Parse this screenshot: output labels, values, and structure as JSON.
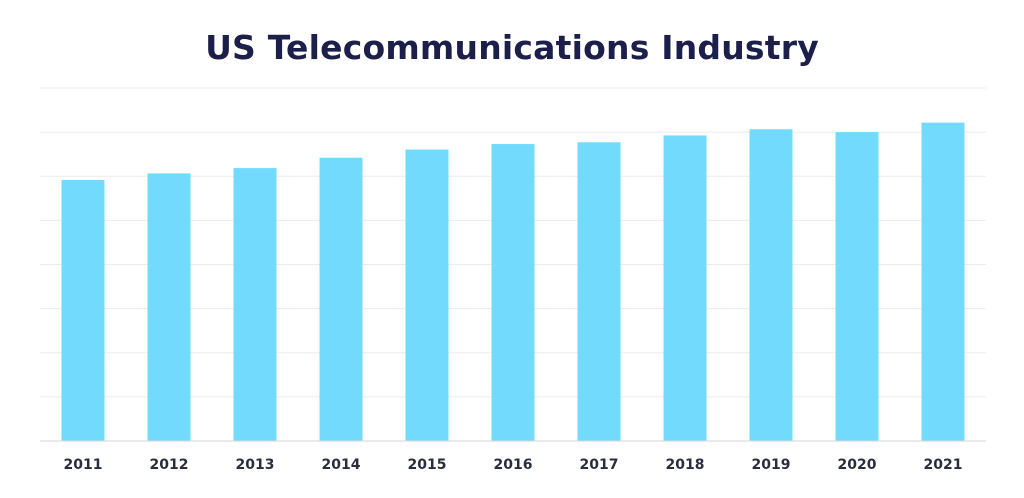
{
  "chart_data": {
    "type": "bar",
    "title": "US Telecommunications Industry",
    "xlabel": "",
    "ylabel": "",
    "categories": [
      "2011",
      "2012",
      "2013",
      "2014",
      "2015",
      "2016",
      "2017",
      "2018",
      "2019",
      "2020",
      "2021"
    ],
    "values": [
      1183,
      1213,
      1237,
      1284,
      1321,
      1346,
      1354,
      1385,
      1413,
      1400,
      1443
    ],
    "ylim": [
      0,
      1600
    ],
    "grid": true,
    "bar_color": "#72dbfd",
    "grid_color": "#ececec",
    "axis_color": "#d6d6d6"
  }
}
